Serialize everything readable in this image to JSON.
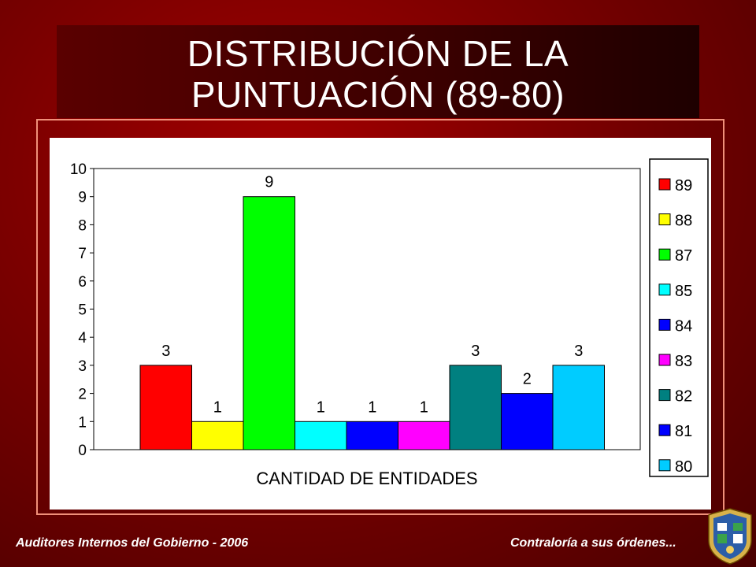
{
  "slide": {
    "title_line1": "DISTRIBUCIÓN DE LA",
    "title_line2": "PUNTUACIÓN (89-80)",
    "footer_left": "Auditores Internos del Gobierno - 2006",
    "footer_right": "Contraloría a sus órdenes..."
  },
  "chart_data": {
    "type": "bar",
    "xlabel": "CANTIDAD DE ENTIDADES",
    "ylabel": "",
    "ylim": [
      0,
      10
    ],
    "yticks": [
      0,
      1,
      2,
      3,
      4,
      5,
      6,
      7,
      8,
      9,
      10
    ],
    "grid": false,
    "legend_position": "right",
    "series": [
      {
        "name": "89",
        "value": 3,
        "color": "#ff0000"
      },
      {
        "name": "88",
        "value": 1,
        "color": "#ffff00"
      },
      {
        "name": "87",
        "value": 9,
        "color": "#00ff00"
      },
      {
        "name": "85",
        "value": 1,
        "color": "#00ffff"
      },
      {
        "name": "84",
        "value": 1,
        "color": "#0000ff"
      },
      {
        "name": "83",
        "value": 1,
        "color": "#ff00ff"
      },
      {
        "name": "82",
        "value": 3,
        "color": "#008080"
      },
      {
        "name": "81",
        "value": 2,
        "color": "#0000ff"
      },
      {
        "name": "80",
        "value": 3,
        "color": "#00ccff"
      }
    ]
  }
}
